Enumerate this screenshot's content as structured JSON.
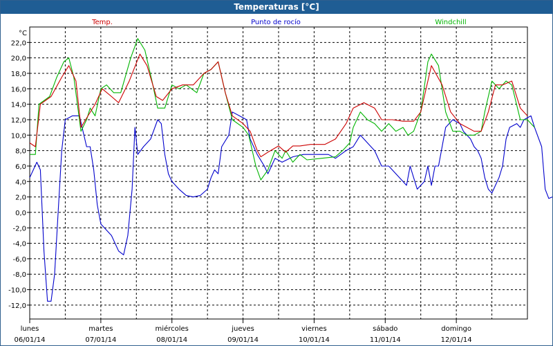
{
  "window": {
    "title": "Temperaturas [°C]"
  },
  "chart_data": {
    "type": "line",
    "ylabel": "°C",
    "ylim": [
      -13.8,
      24.0
    ],
    "yticks": [
      "22,0",
      "20,0",
      "18,0",
      "16,0",
      "14,0",
      "12,0",
      "10,0",
      "8,0",
      "6,0",
      "4,0",
      "2,0",
      "0,0",
      "-2,0",
      "-4,0",
      "-6,0",
      "-8,0",
      "-10,0",
      "-12,0"
    ],
    "ytick_values": [
      22,
      20,
      18,
      16,
      14,
      12,
      10,
      8,
      6,
      4,
      2,
      0,
      -2,
      -4,
      -6,
      -8,
      -10,
      -12
    ],
    "xlim": [
      0,
      7
    ],
    "days": [
      {
        "name": "lunes",
        "date": "06/01/14"
      },
      {
        "name": "martes",
        "date": "07/01/14"
      },
      {
        "name": "miércoles",
        "date": "08/01/14"
      },
      {
        "name": "jueves",
        "date": "09/01/14"
      },
      {
        "name": "viernes",
        "date": "10/01/14"
      },
      {
        "name": "sábado",
        "date": "11/01/14"
      },
      {
        "name": "domingo",
        "date": "12/01/14"
      }
    ],
    "grid": true,
    "series": [
      {
        "name": "Temp.",
        "color": "#cc0000",
        "points": [
          [
            0,
            9.0
          ],
          [
            0.08,
            8.5
          ],
          [
            0.15,
            14.0
          ],
          [
            0.3,
            15.0
          ],
          [
            0.45,
            17.5
          ],
          [
            0.55,
            19.0
          ],
          [
            0.65,
            17.0
          ],
          [
            0.72,
            11.0
          ],
          [
            0.82,
            12.5
          ],
          [
            0.92,
            14.0
          ],
          [
            1.02,
            16.0
          ],
          [
            1.15,
            15.0
          ],
          [
            1.25,
            14.2
          ],
          [
            1.4,
            17.0
          ],
          [
            1.55,
            20.5
          ],
          [
            1.65,
            19.0
          ],
          [
            1.78,
            15.0
          ],
          [
            1.87,
            14.5
          ],
          [
            2.0,
            16.0
          ],
          [
            2.15,
            16.5
          ],
          [
            2.3,
            16.5
          ],
          [
            2.45,
            18.0
          ],
          [
            2.55,
            18.5
          ],
          [
            2.65,
            19.5
          ],
          [
            2.75,
            15.5
          ],
          [
            2.85,
            12.5
          ],
          [
            3.0,
            11.5
          ],
          [
            3.1,
            10.5
          ],
          [
            3.2,
            8.0
          ],
          [
            3.25,
            7.2
          ],
          [
            3.35,
            7.8
          ],
          [
            3.5,
            8.6
          ],
          [
            3.6,
            7.8
          ],
          [
            3.7,
            8.6
          ],
          [
            3.8,
            8.6
          ],
          [
            3.95,
            8.8
          ],
          [
            4.15,
            8.8
          ],
          [
            4.3,
            9.5
          ],
          [
            4.45,
            11.5
          ],
          [
            4.55,
            13.5
          ],
          [
            4.7,
            14.2
          ],
          [
            4.85,
            13.5
          ],
          [
            4.95,
            12.0
          ],
          [
            5.1,
            12.0
          ],
          [
            5.25,
            11.8
          ],
          [
            5.4,
            11.8
          ],
          [
            5.5,
            13.0
          ],
          [
            5.65,
            19.0
          ],
          [
            5.8,
            16.5
          ],
          [
            5.92,
            13.0
          ],
          [
            6.05,
            11.5
          ],
          [
            6.15,
            11.0
          ],
          [
            6.25,
            10.5
          ],
          [
            6.35,
            10.5
          ],
          [
            6.45,
            13.0
          ],
          [
            6.55,
            16.5
          ],
          [
            6.65,
            16.5
          ],
          [
            6.78,
            17.0
          ],
          [
            6.9,
            13.5
          ],
          [
            7.0,
            12.5
          ]
        ]
      },
      {
        "name": "Punto de rocío",
        "color": "#0000cc",
        "points": [
          [
            0,
            4.5
          ],
          [
            0.1,
            6.5
          ],
          [
            0.15,
            5.5
          ],
          [
            0.2,
            -5.0
          ],
          [
            0.25,
            -11.5
          ],
          [
            0.3,
            -11.5
          ],
          [
            0.35,
            -8.0
          ],
          [
            0.4,
            0.0
          ],
          [
            0.45,
            8.0
          ],
          [
            0.5,
            12.0
          ],
          [
            0.6,
            12.5
          ],
          [
            0.7,
            12.5
          ],
          [
            0.75,
            10.5
          ],
          [
            0.8,
            8.5
          ],
          [
            0.85,
            8.5
          ],
          [
            0.9,
            5.5
          ],
          [
            0.95,
            1.0
          ],
          [
            1.0,
            -1.5
          ],
          [
            1.05,
            -2.0
          ],
          [
            1.15,
            -3.0
          ],
          [
            1.25,
            -5.0
          ],
          [
            1.32,
            -5.5
          ],
          [
            1.38,
            -3.0
          ],
          [
            1.44,
            3.0
          ],
          [
            1.48,
            11.0
          ],
          [
            1.52,
            7.5
          ],
          [
            1.6,
            8.5
          ],
          [
            1.7,
            9.5
          ],
          [
            1.8,
            12.0
          ],
          [
            1.85,
            11.5
          ],
          [
            1.9,
            7.5
          ],
          [
            1.95,
            5.0
          ],
          [
            2.0,
            4.0
          ],
          [
            2.1,
            3.0
          ],
          [
            2.2,
            2.2
          ],
          [
            2.3,
            2.0
          ],
          [
            2.4,
            2.2
          ],
          [
            2.5,
            3.0
          ],
          [
            2.55,
            4.5
          ],
          [
            2.6,
            5.5
          ],
          [
            2.65,
            5.0
          ],
          [
            2.7,
            8.5
          ],
          [
            2.8,
            10.0
          ],
          [
            2.85,
            13.0
          ],
          [
            2.95,
            12.5
          ],
          [
            3.05,
            12.0
          ],
          [
            3.1,
            9.5
          ],
          [
            3.2,
            7.5
          ],
          [
            3.3,
            6.0
          ],
          [
            3.35,
            5.0
          ],
          [
            3.45,
            7.0
          ],
          [
            3.55,
            6.5
          ],
          [
            3.7,
            7.2
          ],
          [
            3.85,
            7.5
          ],
          [
            4.0,
            7.5
          ],
          [
            4.2,
            7.5
          ],
          [
            4.3,
            7.0
          ],
          [
            4.45,
            8.0
          ],
          [
            4.55,
            8.5
          ],
          [
            4.65,
            10.0
          ],
          [
            4.75,
            9.0
          ],
          [
            4.85,
            8.0
          ],
          [
            4.95,
            6.0
          ],
          [
            5.05,
            6.0
          ],
          [
            5.15,
            5.0
          ],
          [
            5.25,
            4.0
          ],
          [
            5.3,
            3.5
          ],
          [
            5.35,
            6.0
          ],
          [
            5.4,
            4.5
          ],
          [
            5.45,
            3.0
          ],
          [
            5.55,
            4.0
          ],
          [
            5.6,
            6.0
          ],
          [
            5.65,
            3.5
          ],
          [
            5.7,
            6.0
          ],
          [
            5.75,
            6.0
          ],
          [
            5.8,
            8.5
          ],
          [
            5.85,
            11.0
          ],
          [
            5.95,
            12.0
          ],
          [
            6.05,
            11.5
          ],
          [
            6.1,
            10.5
          ],
          [
            6.2,
            9.5
          ],
          [
            6.25,
            8.5
          ],
          [
            6.3,
            8.0
          ],
          [
            6.35,
            7.0
          ],
          [
            6.4,
            4.5
          ],
          [
            6.45,
            3.0
          ],
          [
            6.5,
            2.5
          ],
          [
            6.55,
            3.5
          ],
          [
            6.6,
            4.5
          ],
          [
            6.65,
            6.0
          ],
          [
            6.7,
            9.5
          ],
          [
            6.75,
            11.0
          ],
          [
            6.85,
            11.5
          ],
          [
            6.9,
            11.0
          ],
          [
            6.95,
            12.0
          ],
          [
            7.05,
            12.5
          ],
          [
            7.1,
            11.0
          ],
          [
            7.2,
            8.5
          ],
          [
            7.25,
            3.0
          ],
          [
            7.3,
            1.8
          ],
          [
            7.35,
            2.0
          ]
        ]
      },
      {
        "name": "Windchill",
        "color": "#00b400",
        "points": [
          [
            0,
            7.5
          ],
          [
            0.08,
            7.5
          ],
          [
            0.13,
            14.0
          ],
          [
            0.28,
            15.0
          ],
          [
            0.38,
            17.5
          ],
          [
            0.48,
            19.5
          ],
          [
            0.55,
            20.0
          ],
          [
            0.62,
            17.5
          ],
          [
            0.72,
            10.5
          ],
          [
            0.8,
            12.0
          ],
          [
            0.85,
            13.5
          ],
          [
            0.92,
            12.5
          ],
          [
            1.0,
            16.0
          ],
          [
            1.08,
            16.5
          ],
          [
            1.18,
            15.5
          ],
          [
            1.28,
            15.5
          ],
          [
            1.42,
            20.0
          ],
          [
            1.52,
            22.5
          ],
          [
            1.62,
            21.0
          ],
          [
            1.72,
            17.0
          ],
          [
            1.8,
            13.5
          ],
          [
            1.9,
            13.5
          ],
          [
            2.0,
            16.5
          ],
          [
            2.1,
            16.0
          ],
          [
            2.2,
            16.5
          ],
          [
            2.35,
            15.5
          ],
          [
            2.45,
            18.0
          ],
          [
            2.55,
            18.5
          ],
          [
            2.65,
            19.5
          ],
          [
            2.75,
            15.5
          ],
          [
            2.85,
            12.0
          ],
          [
            3.0,
            11.0
          ],
          [
            3.08,
            10.0
          ],
          [
            3.18,
            6.0
          ],
          [
            3.25,
            4.2
          ],
          [
            3.35,
            5.5
          ],
          [
            3.45,
            8.0
          ],
          [
            3.55,
            7.0
          ],
          [
            3.6,
            8.0
          ],
          [
            3.7,
            6.5
          ],
          [
            3.8,
            7.5
          ],
          [
            3.9,
            6.8
          ],
          [
            4.1,
            7.0
          ],
          [
            4.3,
            7.2
          ],
          [
            4.4,
            8.0
          ],
          [
            4.5,
            9.0
          ],
          [
            4.55,
            11.0
          ],
          [
            4.65,
            13.0
          ],
          [
            4.75,
            12.0
          ],
          [
            4.85,
            11.5
          ],
          [
            4.95,
            10.5
          ],
          [
            5.05,
            11.5
          ],
          [
            5.15,
            10.5
          ],
          [
            5.25,
            11.0
          ],
          [
            5.32,
            10.0
          ],
          [
            5.4,
            10.5
          ],
          [
            5.5,
            13.0
          ],
          [
            5.6,
            19.5
          ],
          [
            5.65,
            20.5
          ],
          [
            5.75,
            19.0
          ],
          [
            5.85,
            13.0
          ],
          [
            5.95,
            10.5
          ],
          [
            6.05,
            10.5
          ],
          [
            6.15,
            10.0
          ],
          [
            6.25,
            10.0
          ],
          [
            6.35,
            10.5
          ],
          [
            6.4,
            13.0
          ],
          [
            6.5,
            17.0
          ],
          [
            6.6,
            16.0
          ],
          [
            6.7,
            17.0
          ],
          [
            6.78,
            16.5
          ],
          [
            6.9,
            12.0
          ],
          [
            7.0,
            12.0
          ],
          [
            7.1,
            11.0
          ]
        ]
      }
    ]
  }
}
